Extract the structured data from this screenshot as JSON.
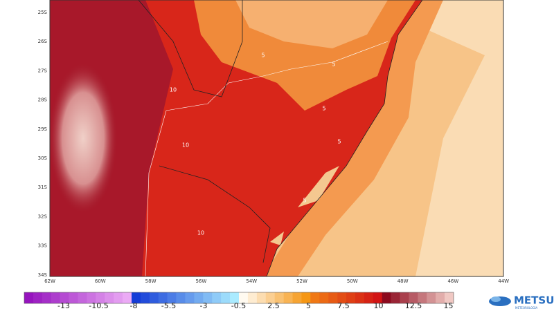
{
  "map": {
    "lat_labels": [
      "25S",
      "26S",
      "27S",
      "28S",
      "29S",
      "30S",
      "31S",
      "32S",
      "33S",
      "34S"
    ],
    "lon_labels": [
      "62W",
      "60W",
      "58W",
      "56W",
      "54W",
      "52W",
      "50W",
      "48W",
      "46W",
      "44W"
    ],
    "contour_labels": [
      "10",
      "10",
      "10",
      "5",
      "5",
      "5",
      "5",
      "5"
    ]
  },
  "colorbar": {
    "labels": [
      "-13",
      "-10.5",
      "-8",
      "-5.5",
      "-3",
      "-0.5",
      "2.5",
      "5",
      "7.5",
      "10",
      "12.5",
      "15"
    ]
  },
  "logo": {
    "name": "METSUL",
    "tagline": "METEOROLOGIA"
  }
}
